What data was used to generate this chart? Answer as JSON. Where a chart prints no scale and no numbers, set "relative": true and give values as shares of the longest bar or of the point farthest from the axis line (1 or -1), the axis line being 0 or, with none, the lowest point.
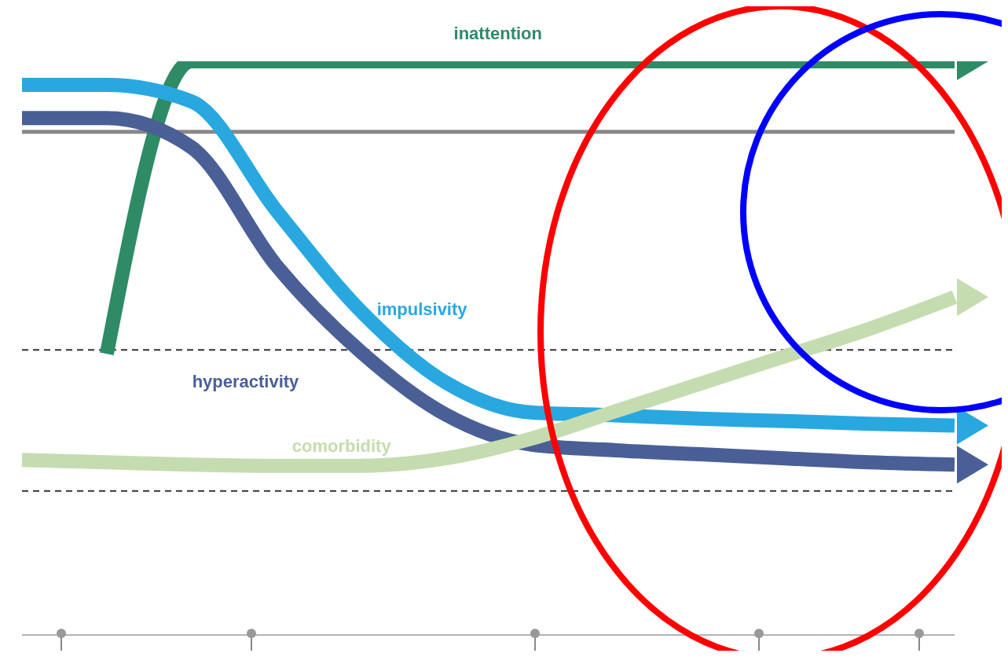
{
  "chart_data": {
    "type": "line",
    "relative": true,
    "categories": [
      null,
      null,
      null,
      null,
      null,
      null,
      null,
      null,
      null,
      null,
      null,
      null
    ],
    "series": [
      {
        "name": "inattention",
        "color": "#2e8b66",
        "values": [
          null,
          0.49,
          1.0,
          1.0,
          1.0,
          1.0,
          1.0,
          1.0,
          1.0,
          1.0,
          1.0,
          1.0
        ]
      },
      {
        "name": "impulsivity",
        "color": "#29a8e0",
        "values": [
          0.959,
          0.959,
          0.93,
          0.74,
          0.564,
          0.44,
          0.388,
          0.383,
          0.377,
          0.373,
          0.368,
          0.365
        ]
      },
      {
        "name": "hyperactivity",
        "color": "#4a5f96",
        "values": [
          0.901,
          0.901,
          0.85,
          0.644,
          0.493,
          0.384,
          0.332,
          0.322,
          0.315,
          0.308,
          0.301,
          0.297
        ]
      },
      {
        "name": "comorbidity",
        "color": "#c5dcb0",
        "values": [
          0.305,
          0.301,
          0.297,
          0.295,
          0.295,
          0.308,
          0.342,
          0.39,
          0.438,
          0.486,
          0.534,
          0.589
        ]
      }
    ],
    "ref_lines": [
      {
        "axis": "y",
        "value": 0.877,
        "color": "#888888",
        "line_style": "solid"
      },
      {
        "axis": "y",
        "value": 0.497,
        "color": "#333333",
        "line_style": "dashed"
      },
      {
        "axis": "y",
        "value": 0.251,
        "color": "#333333",
        "line_style": "dashed"
      }
    ],
    "grid": false,
    "legend": false
  }
}
